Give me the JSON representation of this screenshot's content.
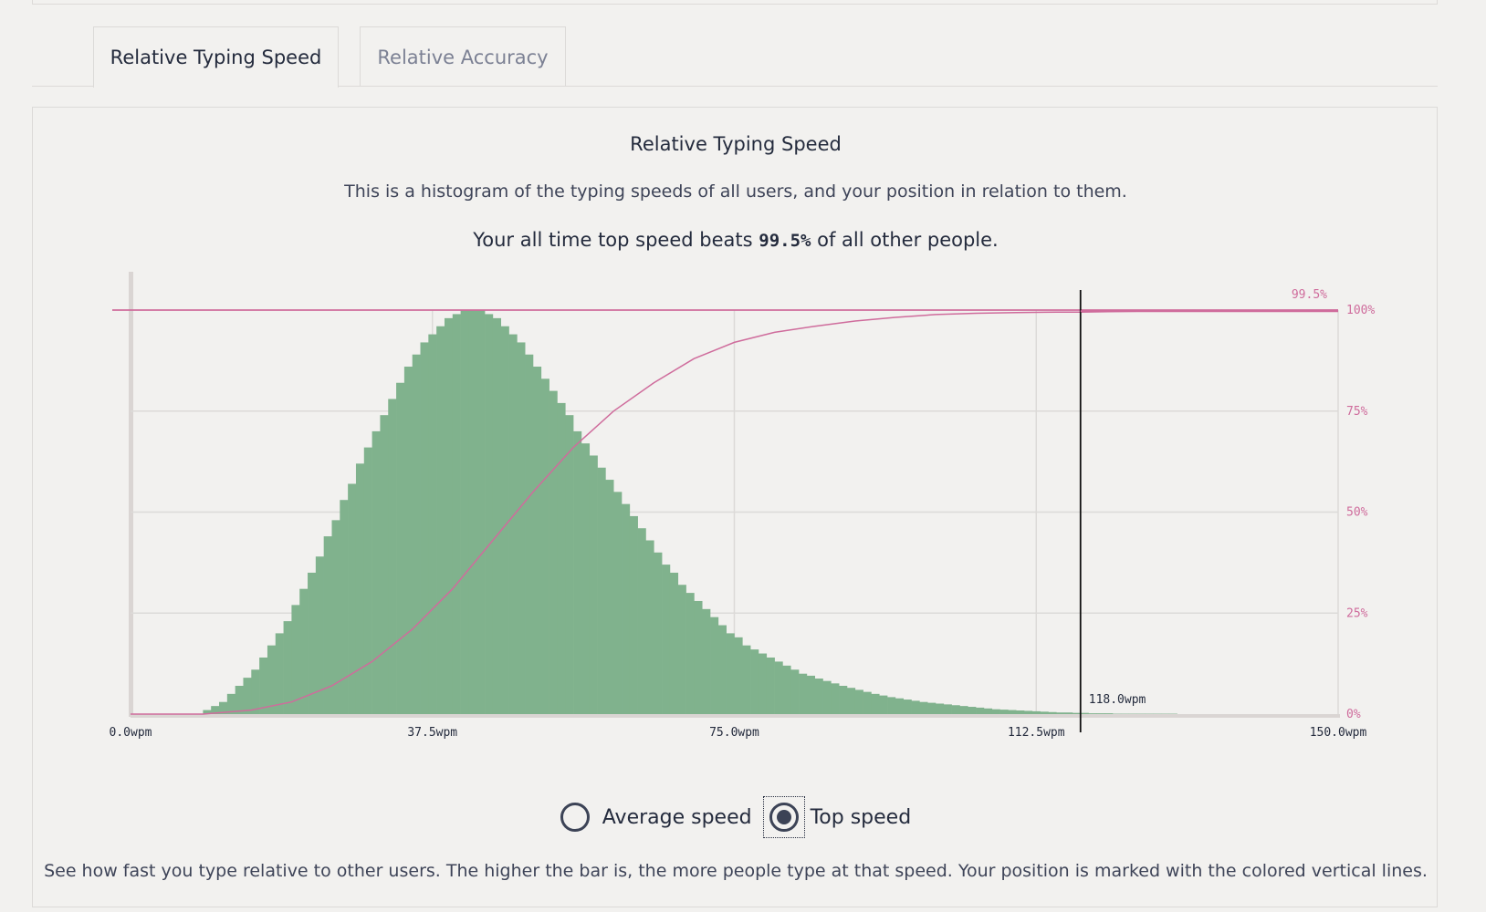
{
  "tabs": [
    {
      "label": "Relative Typing Speed",
      "active": true
    },
    {
      "label": "Relative Accuracy",
      "active": false
    }
  ],
  "panel": {
    "heading": "Relative Typing Speed",
    "description": "This is a histogram of the typing speeds of all users, and your position in relation to them.",
    "summary_prefix": "Your all time top speed beats ",
    "summary_value": "99.5%",
    "summary_suffix": " of all other people.",
    "footer": "See how fast you type relative to other users. The higher the bar is, the more people type at that speed. Your position is marked with the colored vertical lines."
  },
  "radios": {
    "average_label": "Average speed",
    "top_label": "Top speed",
    "selected": "top"
  },
  "colors": {
    "bars": "#80b28d",
    "cumulative": "#cf6c9c",
    "marker": "#111111",
    "grid": "#dcdad8",
    "text": "#242b3d"
  },
  "chart_data": {
    "type": "bar",
    "description_note": "",
    "x_unit": "wpm",
    "xlim": [
      0,
      150
    ],
    "x_ticks": [
      "0.0wpm",
      "37.5wpm",
      "75.0wpm",
      "112.5wpm",
      "150.0wpm"
    ],
    "y_ticks_right": [
      "0%",
      "25%",
      "50%",
      "75%",
      "100%"
    ],
    "bin_width": 1,
    "bin_starts": [
      9,
      10,
      11,
      12,
      13,
      14,
      15,
      16,
      17,
      18,
      19,
      20,
      21,
      22,
      23,
      24,
      25,
      26,
      27,
      28,
      29,
      30,
      31,
      32,
      33,
      34,
      35,
      36,
      37,
      38,
      39,
      40,
      41,
      42,
      43,
      44,
      45,
      46,
      47,
      48,
      49,
      50,
      51,
      52,
      53,
      54,
      55,
      56,
      57,
      58,
      59,
      60,
      61,
      62,
      63,
      64,
      65,
      66,
      67,
      68,
      69,
      70,
      71,
      72,
      73,
      74,
      75,
      76,
      77,
      78,
      79,
      80,
      81,
      82,
      83,
      84,
      85,
      86,
      87,
      88,
      89,
      90,
      91,
      92,
      93,
      94,
      95,
      96,
      97,
      98,
      99,
      100,
      101,
      102,
      103,
      104,
      105,
      106,
      107,
      108,
      109,
      110,
      111,
      112,
      113,
      114,
      115,
      116,
      117,
      118,
      119,
      120,
      121,
      122,
      123,
      124,
      125,
      126,
      127,
      128,
      129,
      130,
      131,
      132,
      133,
      134,
      135,
      136,
      137,
      138,
      139,
      140
    ],
    "relative_counts": [
      0.01,
      0.02,
      0.03,
      0.05,
      0.07,
      0.09,
      0.11,
      0.14,
      0.17,
      0.2,
      0.23,
      0.27,
      0.31,
      0.35,
      0.39,
      0.44,
      0.48,
      0.53,
      0.57,
      0.62,
      0.66,
      0.7,
      0.74,
      0.78,
      0.82,
      0.86,
      0.89,
      0.92,
      0.94,
      0.96,
      0.98,
      0.99,
      1.0,
      1.0,
      1.0,
      0.99,
      0.98,
      0.96,
      0.94,
      0.92,
      0.89,
      0.86,
      0.83,
      0.8,
      0.77,
      0.74,
      0.7,
      0.67,
      0.64,
      0.61,
      0.58,
      0.55,
      0.52,
      0.49,
      0.46,
      0.43,
      0.4,
      0.37,
      0.35,
      0.32,
      0.3,
      0.28,
      0.26,
      0.24,
      0.22,
      0.2,
      0.19,
      0.17,
      0.16,
      0.15,
      0.14,
      0.13,
      0.12,
      0.11,
      0.1,
      0.095,
      0.088,
      0.082,
      0.076,
      0.07,
      0.065,
      0.06,
      0.055,
      0.05,
      0.046,
      0.042,
      0.039,
      0.036,
      0.033,
      0.03,
      0.028,
      0.026,
      0.024,
      0.022,
      0.02,
      0.018,
      0.016,
      0.014,
      0.012,
      0.011,
      0.01,
      0.009,
      0.008,
      0.007,
      0.006,
      0.005,
      0.004,
      0.004,
      0.003,
      0.003,
      0.002,
      0.002,
      0.002,
      0.001,
      0.001,
      0.001,
      0.001,
      0.001,
      0.001,
      0.001,
      0.001,
      0.0,
      0.0,
      0.0,
      0.0,
      0.0,
      0.0,
      0.0,
      0.0,
      0.0,
      0.0,
      0.0
    ],
    "cumulative_curve": {
      "x": [
        0,
        9,
        15,
        20,
        25,
        30,
        35,
        40,
        45,
        50,
        55,
        60,
        65,
        70,
        75,
        80,
        85,
        90,
        95,
        100,
        105,
        110,
        115,
        118,
        125,
        135,
        150
      ],
      "y": [
        0,
        0,
        1,
        3,
        7,
        13,
        21,
        31,
        43,
        55,
        66,
        75,
        82,
        88,
        92,
        94.5,
        96,
        97.3,
        98.2,
        98.9,
        99.2,
        99.4,
        99.5,
        99.5,
        99.7,
        99.9,
        100
      ]
    },
    "marker": {
      "x": 118.0,
      "label": "118.0wpm",
      "percentile_label": "99.5%"
    }
  }
}
